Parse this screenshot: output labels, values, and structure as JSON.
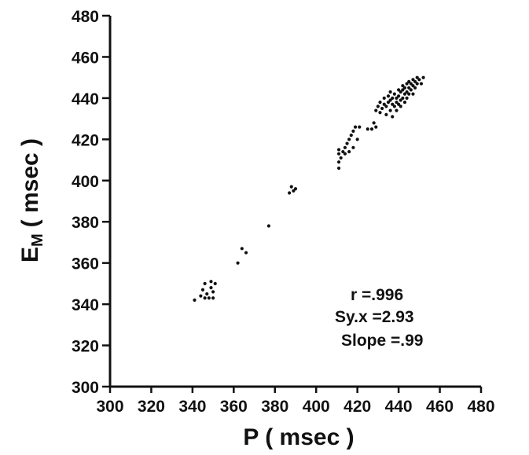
{
  "chart_data": {
    "type": "scatter",
    "title": "",
    "xlabel": "P ( msec )",
    "ylabel": "E",
    "ylabel_sub": "M",
    "ylabel_unit": "( msec )",
    "xlim": [
      300,
      480
    ],
    "ylim": [
      300,
      480
    ],
    "x_ticks": [
      300,
      320,
      340,
      360,
      380,
      400,
      420,
      440,
      460,
      480
    ],
    "y_ticks": [
      300,
      320,
      340,
      360,
      380,
      400,
      420,
      440,
      460,
      480
    ],
    "grid": false,
    "annotations": [
      "r =.996",
      "Sy.x =2.93",
      "Slope =.99"
    ],
    "points": [
      [
        341,
        342
      ],
      [
        344,
        344
      ],
      [
        345,
        347
      ],
      [
        346,
        350
      ],
      [
        346,
        343
      ],
      [
        347,
        345
      ],
      [
        348,
        343
      ],
      [
        349,
        348
      ],
      [
        349,
        351
      ],
      [
        350,
        343
      ],
      [
        350,
        346
      ],
      [
        351,
        350
      ],
      [
        362,
        360
      ],
      [
        364,
        367
      ],
      [
        366,
        365
      ],
      [
        377,
        378
      ],
      [
        387,
        394
      ],
      [
        388,
        397
      ],
      [
        389,
        395
      ],
      [
        390,
        396
      ],
      [
        411,
        406
      ],
      [
        411,
        409
      ],
      [
        411,
        413
      ],
      [
        411,
        415
      ],
      [
        412,
        411
      ],
      [
        413,
        414
      ],
      [
        414,
        416
      ],
      [
        414,
        413
      ],
      [
        415,
        418
      ],
      [
        416,
        414
      ],
      [
        416,
        420
      ],
      [
        417,
        422
      ],
      [
        418,
        416
      ],
      [
        418,
        424
      ],
      [
        419,
        426
      ],
      [
        420,
        420
      ],
      [
        421,
        426
      ],
      [
        425,
        425
      ],
      [
        427,
        425
      ],
      [
        428,
        428
      ],
      [
        429,
        426
      ],
      [
        429,
        434
      ],
      [
        430,
        436
      ],
      [
        431,
        438
      ],
      [
        431,
        433
      ],
      [
        432,
        435
      ],
      [
        433,
        437
      ],
      [
        433,
        440
      ],
      [
        434,
        432
      ],
      [
        434,
        436
      ],
      [
        435,
        438
      ],
      [
        435,
        441
      ],
      [
        436,
        434
      ],
      [
        436,
        439
      ],
      [
        436,
        443
      ],
      [
        437,
        431
      ],
      [
        437,
        437
      ],
      [
        437,
        440
      ],
      [
        438,
        436
      ],
      [
        438,
        442
      ],
      [
        439,
        434
      ],
      [
        439,
        438
      ],
      [
        439,
        440
      ],
      [
        440,
        437
      ],
      [
        440,
        441
      ],
      [
        440,
        444
      ],
      [
        441,
        436
      ],
      [
        441,
        439
      ],
      [
        441,
        443
      ],
      [
        442,
        440
      ],
      [
        442,
        444
      ],
      [
        442,
        446
      ],
      [
        443,
        438
      ],
      [
        443,
        442
      ],
      [
        443,
        445
      ],
      [
        444,
        440
      ],
      [
        444,
        443
      ],
      [
        444,
        447
      ],
      [
        445,
        442
      ],
      [
        445,
        445
      ],
      [
        445,
        448
      ],
      [
        446,
        444
      ],
      [
        446,
        447
      ],
      [
        447,
        442
      ],
      [
        447,
        446
      ],
      [
        447,
        449
      ],
      [
        448,
        445
      ],
      [
        448,
        448
      ],
      [
        449,
        450
      ],
      [
        449,
        447
      ],
      [
        450,
        449
      ],
      [
        451,
        447
      ],
      [
        452,
        450
      ]
    ]
  }
}
